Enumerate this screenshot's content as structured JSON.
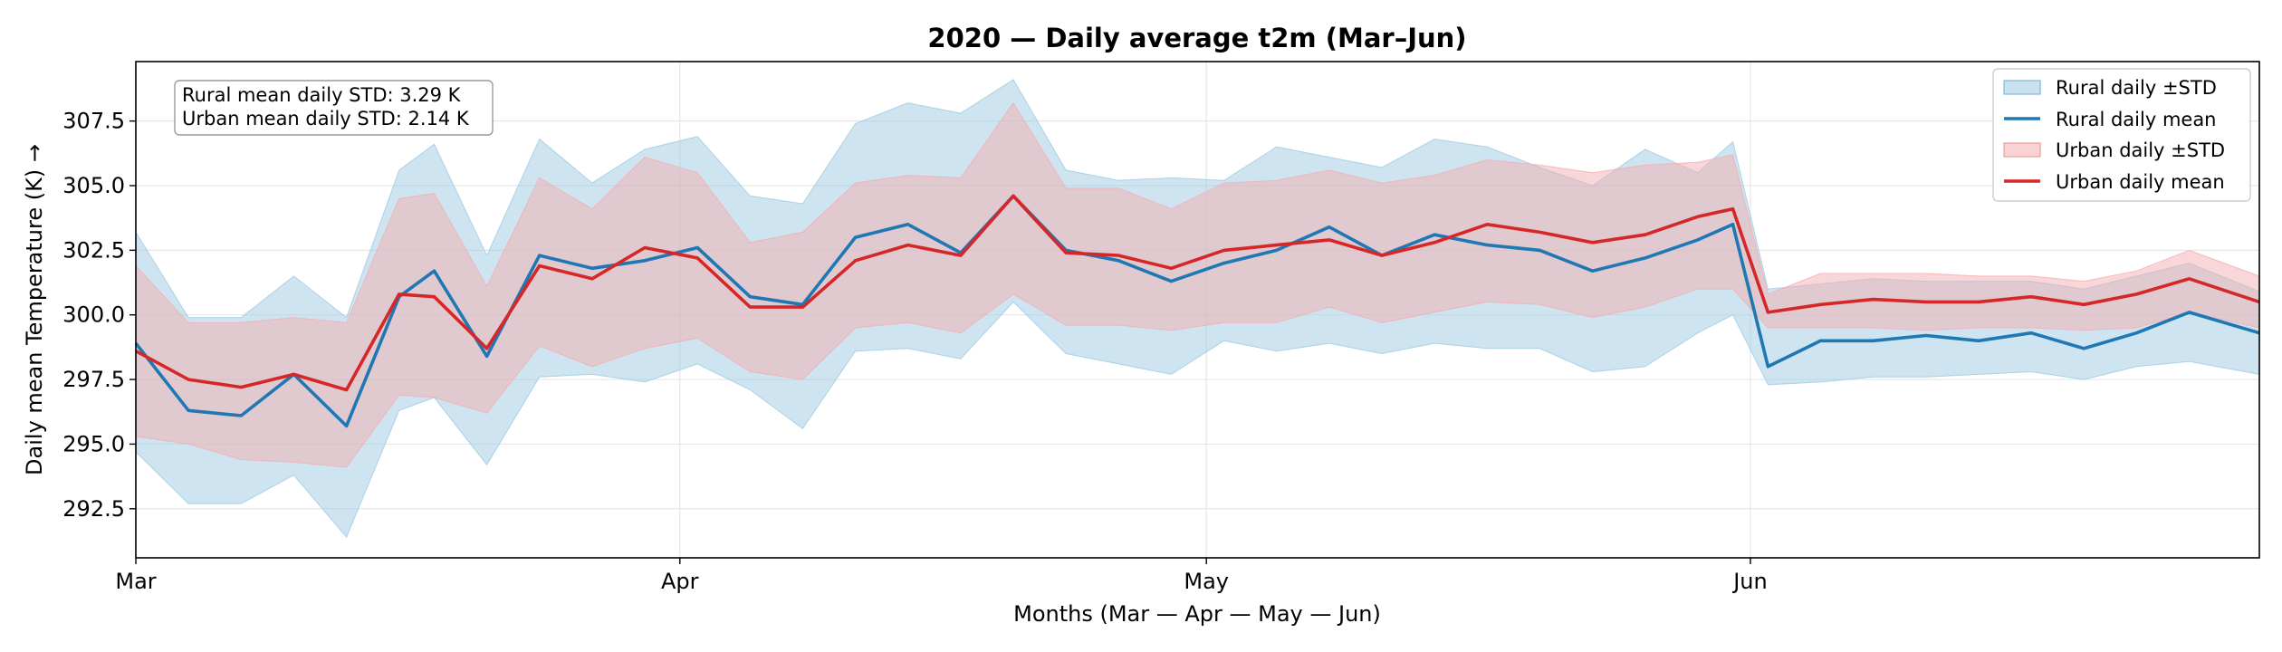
{
  "chart_data": {
    "type": "area",
    "title": "2020 — Daily average t2m (Mar–Jun)",
    "xlabel": "Months (Mar — Apr — May — Jun)",
    "ylabel": "Daily mean Temperature (K) →",
    "x_start": "2020-03-01",
    "x_end": "2020-06-30",
    "xticks": [
      {
        "date": "2020-03-01",
        "label": "Mar"
      },
      {
        "date": "2020-04-01",
        "label": "Apr"
      },
      {
        "date": "2020-05-01",
        "label": "May"
      },
      {
        "date": "2020-06-01",
        "label": "Jun"
      }
    ],
    "ylim": [
      290.6,
      309.8
    ],
    "yticks": [
      292.5,
      295.0,
      297.5,
      300.0,
      302.5,
      305.0,
      307.5
    ],
    "ytick_labels": [
      "292.5",
      "295.0",
      "297.5",
      "300.0",
      "302.5",
      "305.0",
      "307.5"
    ],
    "grid": true,
    "legend_position": "top-right",
    "annotation": [
      "Rural mean daily STD: 3.29 K",
      "Urban mean daily STD: 2.14 K"
    ],
    "series": [
      {
        "name": "Rural daily mean",
        "band_name": "Rural daily ±STD",
        "color": "#1f77b4",
        "band_color": "#9ecae1",
        "x": [
          "2020-03-01",
          "2020-03-04",
          "2020-03-07",
          "2020-03-10",
          "2020-03-13",
          "2020-03-16",
          "2020-03-18",
          "2020-03-21",
          "2020-03-24",
          "2020-03-27",
          "2020-03-30",
          "2020-04-02",
          "2020-04-05",
          "2020-04-08",
          "2020-04-11",
          "2020-04-14",
          "2020-04-17",
          "2020-04-20",
          "2020-04-23",
          "2020-04-26",
          "2020-04-29",
          "2020-05-02",
          "2020-05-05",
          "2020-05-08",
          "2020-05-11",
          "2020-05-14",
          "2020-05-17",
          "2020-05-20",
          "2020-05-23",
          "2020-05-26",
          "2020-05-29",
          "2020-05-31",
          "2020-06-02",
          "2020-06-05",
          "2020-06-08",
          "2020-06-11",
          "2020-06-14",
          "2020-06-17",
          "2020-06-20",
          "2020-06-23",
          "2020-06-26",
          "2020-06-30"
        ],
        "y": [
          298.9,
          296.3,
          296.1,
          297.7,
          295.7,
          300.7,
          301.7,
          298.4,
          302.3,
          301.8,
          302.1,
          302.6,
          300.7,
          300.4,
          303.0,
          303.5,
          302.4,
          304.6,
          302.5,
          302.1,
          301.3,
          302.0,
          302.5,
          303.4,
          302.3,
          303.1,
          302.7,
          302.5,
          301.7,
          302.2,
          302.9,
          303.5,
          298.0,
          299.0,
          299.0,
          299.2,
          299.0,
          299.3,
          298.7,
          299.3,
          300.1,
          299.3
        ],
        "upper": [
          303.2,
          299.9,
          299.9,
          301.5,
          299.9,
          305.6,
          306.6,
          302.3,
          306.8,
          305.1,
          306.4,
          306.9,
          304.6,
          304.3,
          307.4,
          308.2,
          307.8,
          309.1,
          305.6,
          305.2,
          305.3,
          305.2,
          306.5,
          306.1,
          305.7,
          306.8,
          306.5,
          305.7,
          305.0,
          306.4,
          305.5,
          306.7,
          301.0,
          301.2,
          301.4,
          301.3,
          301.3,
          301.3,
          301.0,
          301.5,
          302.0,
          300.9
        ],
        "lower": [
          294.7,
          292.7,
          292.7,
          293.8,
          291.4,
          296.3,
          296.8,
          294.2,
          297.6,
          297.7,
          297.4,
          298.1,
          297.1,
          295.6,
          298.6,
          298.7,
          298.3,
          300.5,
          298.5,
          298.1,
          297.7,
          299.0,
          298.6,
          298.9,
          298.5,
          298.9,
          298.7,
          298.7,
          297.8,
          298.0,
          299.3,
          300.0,
          297.3,
          297.4,
          297.6,
          297.6,
          297.7,
          297.8,
          297.5,
          298.0,
          298.2,
          297.7
        ]
      },
      {
        "name": "Urban daily mean",
        "band_name": "Urban daily ±STD",
        "color": "#d62728",
        "band_color": "#f4aeb0",
        "x": [
          "2020-03-01",
          "2020-03-04",
          "2020-03-07",
          "2020-03-10",
          "2020-03-13",
          "2020-03-16",
          "2020-03-18",
          "2020-03-21",
          "2020-03-24",
          "2020-03-27",
          "2020-03-30",
          "2020-04-02",
          "2020-04-05",
          "2020-04-08",
          "2020-04-11",
          "2020-04-14",
          "2020-04-17",
          "2020-04-20",
          "2020-04-23",
          "2020-04-26",
          "2020-04-29",
          "2020-05-02",
          "2020-05-05",
          "2020-05-08",
          "2020-05-11",
          "2020-05-14",
          "2020-05-17",
          "2020-05-20",
          "2020-05-23",
          "2020-05-26",
          "2020-05-29",
          "2020-05-31",
          "2020-06-02",
          "2020-06-05",
          "2020-06-08",
          "2020-06-11",
          "2020-06-14",
          "2020-06-17",
          "2020-06-20",
          "2020-06-23",
          "2020-06-26",
          "2020-06-30"
        ],
        "y": [
          298.6,
          297.5,
          297.2,
          297.7,
          297.1,
          300.8,
          300.7,
          298.7,
          301.9,
          301.4,
          302.6,
          302.2,
          300.3,
          300.3,
          302.1,
          302.7,
          302.3,
          304.6,
          302.4,
          302.3,
          301.8,
          302.5,
          302.7,
          302.9,
          302.3,
          302.8,
          303.5,
          303.2,
          302.8,
          303.1,
          303.8,
          304.1,
          300.1,
          300.4,
          300.6,
          300.5,
          300.5,
          300.7,
          300.4,
          300.8,
          301.4,
          300.5
        ],
        "upper": [
          301.9,
          299.7,
          299.7,
          299.9,
          299.7,
          304.5,
          304.7,
          301.1,
          305.3,
          304.1,
          306.1,
          305.5,
          302.8,
          303.2,
          305.1,
          305.4,
          305.3,
          308.2,
          304.9,
          304.9,
          304.1,
          305.1,
          305.2,
          305.6,
          305.1,
          305.4,
          306.0,
          305.8,
          305.5,
          305.8,
          305.9,
          306.2,
          300.8,
          301.6,
          301.6,
          301.6,
          301.5,
          301.5,
          301.3,
          301.7,
          302.5,
          301.5
        ],
        "lower": [
          295.3,
          295.0,
          294.4,
          294.3,
          294.1,
          296.9,
          296.8,
          296.2,
          298.8,
          298.0,
          298.7,
          299.1,
          297.8,
          297.5,
          299.5,
          299.7,
          299.3,
          300.8,
          299.6,
          299.6,
          299.4,
          299.7,
          299.7,
          300.3,
          299.7,
          300.1,
          300.5,
          300.4,
          299.9,
          300.3,
          301.0,
          301.0,
          299.5,
          299.5,
          299.5,
          299.4,
          299.5,
          299.5,
          299.4,
          299.5,
          300.1,
          299.5
        ]
      }
    ]
  }
}
